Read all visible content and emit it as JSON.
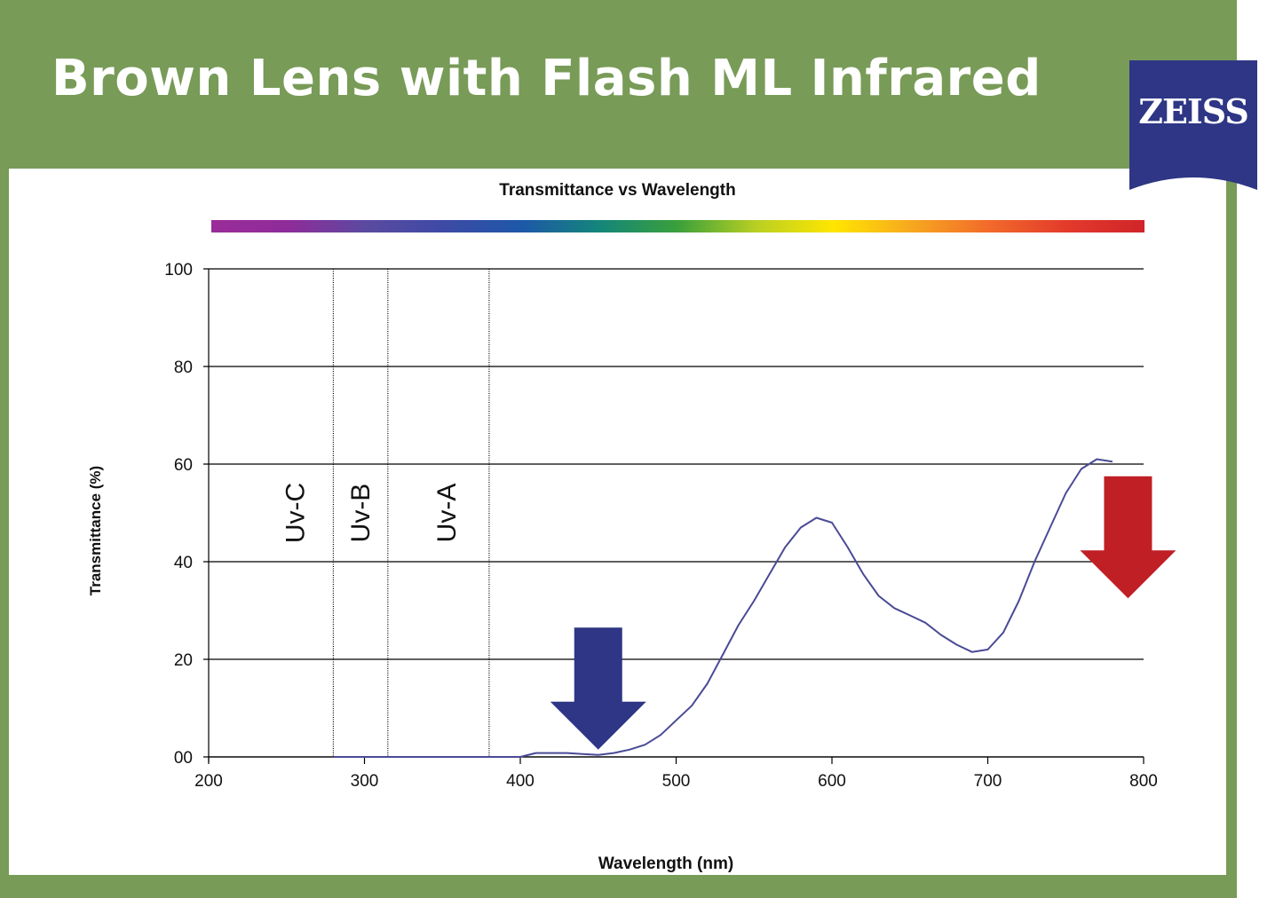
{
  "slide": {
    "title": "Brown Lens with Flash ML Infrared",
    "background_color": "#789b57",
    "logo": {
      "text": "ZEISS",
      "color": "#2e3685"
    }
  },
  "chart_data": {
    "type": "line",
    "title": "Transmittance vs Wavelength",
    "xlabel": "Wavelength (nm)",
    "ylabel": "Transmittance (%)",
    "xlim": [
      200,
      800
    ],
    "ylim": [
      0,
      100
    ],
    "x_ticks": [
      "200",
      "300",
      "400",
      "500",
      "600",
      "700",
      "800"
    ],
    "y_ticks": [
      "00",
      "20",
      "40",
      "60",
      "80",
      "100"
    ],
    "grid": "horizontal",
    "uv_bands": [
      {
        "label": "Uv-C",
        "from": 200,
        "to": 280
      },
      {
        "label": "Uv-B",
        "from": 280,
        "to": 315
      },
      {
        "label": "Uv-A",
        "from": 315,
        "to": 380
      }
    ],
    "series": [
      {
        "line_color": "#4a4a96",
        "x": [
          280,
          300,
          320,
          340,
          360,
          380,
          400,
          410,
          420,
          430,
          440,
          450,
          460,
          470,
          480,
          490,
          500,
          510,
          520,
          530,
          540,
          550,
          560,
          570,
          580,
          590,
          600,
          610,
          620,
          630,
          640,
          650,
          660,
          670,
          680,
          690,
          700,
          710,
          720,
          730,
          740,
          750,
          760,
          770,
          780
        ],
        "y": [
          0,
          0,
          0,
          0,
          0,
          0,
          0,
          0.8,
          0.8,
          0.8,
          0.6,
          0.4,
          0.8,
          1.5,
          2.5,
          4.5,
          7.5,
          10.5,
          15,
          21,
          27,
          32,
          37.5,
          43,
          47,
          49,
          48,
          43,
          37.5,
          33,
          30.5,
          29,
          27.5,
          25,
          23,
          21.5,
          22,
          25.5,
          32,
          40,
          47,
          54,
          59,
          61,
          60.5
        ]
      }
    ],
    "spectrum_bar": {
      "stops": [
        "#9a2c98",
        "#8e2c9a",
        "#5a4aa0",
        "#3d4aa6",
        "#1d58a8",
        "#14867a",
        "#3aa03a",
        "#b8cf23",
        "#ffe600",
        "#f7a81f",
        "#f26a2a",
        "#e33a2b",
        "#d0242a"
      ]
    },
    "annotations": [
      {
        "type": "arrow-down",
        "color": "#2e3685",
        "x": 450,
        "y_top": 26.5,
        "y_tip": 1.5
      },
      {
        "type": "arrow-down",
        "color": "#c01f26",
        "x": 790,
        "y_top": 57.5,
        "y_tip": 32.5
      }
    ]
  }
}
